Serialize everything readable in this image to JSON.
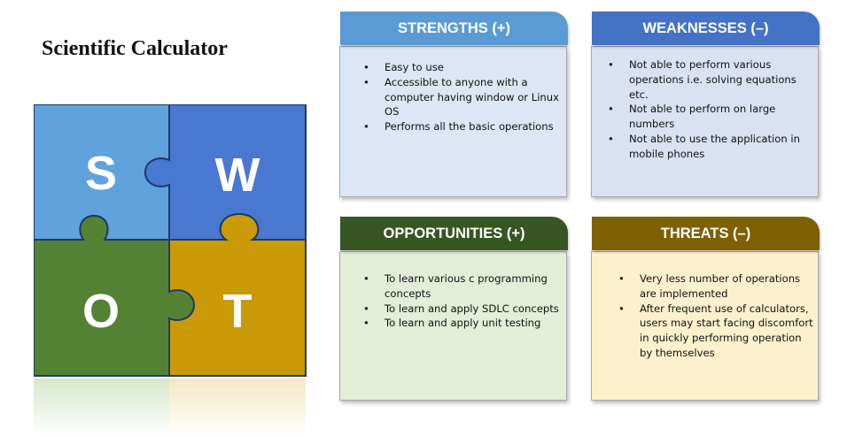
{
  "title": "Scientific Calculator",
  "puzzle": {
    "letters": [
      "S",
      "W",
      "O",
      "T"
    ],
    "colors": {
      "s": "#5fa2dd",
      "w": "#4878d0",
      "o": "#548235",
      "t": "#c99a06"
    }
  },
  "cards": {
    "strengths": {
      "header": "STRENGTHS (+)",
      "items": [
        "Easy to use",
        "Accessible to anyone with a computer having window or Linux OS",
        "Performs all the basic operations"
      ]
    },
    "weaknesses": {
      "header": "WEAKNESSES (–)",
      "items": [
        "Not able to perform various operations i.e. solving equations etc.",
        "Not able to perform on large numbers",
        "Not able to use the application in mobile phones"
      ]
    },
    "opportunities": {
      "header": "OPPORTUNITIES (+)",
      "items": [
        "To learn various c programming concepts",
        "To learn and apply SDLC concepts",
        "To learn and apply unit testing"
      ]
    },
    "threats": {
      "header": "THREATS (–)",
      "items": [
        "Very less number of operations are implemented",
        "After frequent use of calculators, users may start facing discomfort in quickly performing operation by themselves"
      ]
    }
  }
}
